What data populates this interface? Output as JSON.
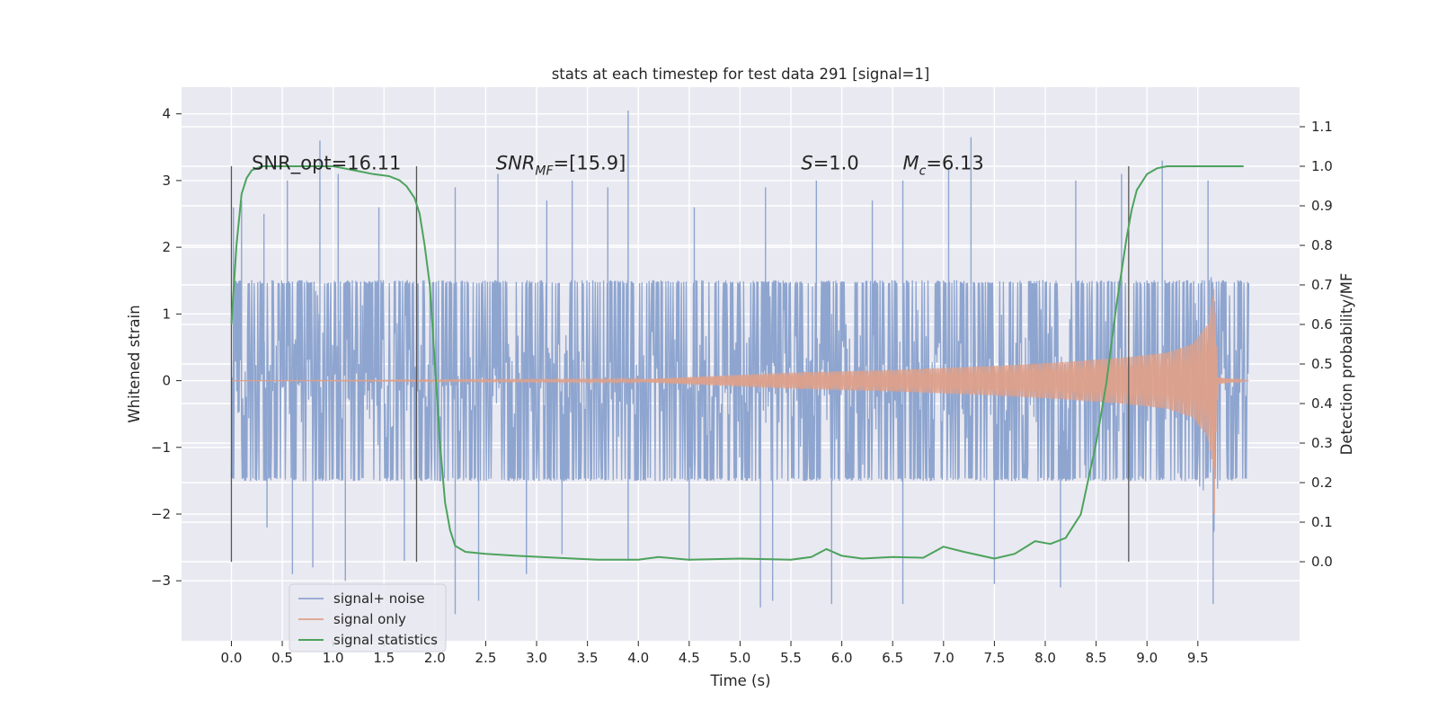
{
  "chart_data": {
    "type": "line",
    "title": "stats at each timestep for test data 291 [signal=1]",
    "xlabel": "Time (s)",
    "ylabel": "Whitened strain",
    "y2label": "Detection probability/MF",
    "xlim": [
      -0.49,
      10.5
    ],
    "ylim": [
      -3.9,
      4.4
    ],
    "y2lim": [
      -0.2,
      1.2
    ],
    "xticks": [
      0.0,
      0.5,
      1.0,
      1.5,
      2.0,
      2.5,
      3.0,
      3.5,
      4.0,
      4.5,
      5.0,
      5.5,
      6.0,
      6.5,
      7.0,
      7.5,
      8.0,
      8.5,
      9.0,
      9.5
    ],
    "xtick_labels": [
      "0.0",
      "0.5",
      "1.0",
      "1.5",
      "2.0",
      "2.5",
      "3.0",
      "3.5",
      "4.0",
      "4.5",
      "5.0",
      "5.5",
      "6.0",
      "6.5",
      "7.0",
      "7.5",
      "8.0",
      "8.5",
      "9.0",
      "9.5"
    ],
    "yticks": [
      -3,
      -2,
      -1,
      0,
      1,
      2,
      3,
      4
    ],
    "ytick_labels": [
      "−3",
      "−2",
      "−1",
      "0",
      "1",
      "2",
      "3",
      "4"
    ],
    "y2ticks": [
      0.0,
      0.1,
      0.2,
      0.3,
      0.4,
      0.5,
      0.6,
      0.7,
      0.8,
      0.9,
      1.0,
      1.1
    ],
    "y2tick_labels": [
      "0.0",
      "0.1",
      "0.2",
      "0.3",
      "0.4",
      "0.5",
      "0.6",
      "0.7",
      "0.8",
      "0.9",
      "1.0",
      "1.1"
    ],
    "grid": true,
    "legend_position": "lower-left",
    "annotations": {
      "snr_opt": "SNR_opt=16.11",
      "snr_mf_main": "SNR",
      "snr_mf_sub": "MF",
      "snr_mf_value": "=[15.9]",
      "s_main": "S",
      "s_value": "=1.0",
      "mc_main": "M",
      "mc_sub": "c",
      "mc_value": "=6.13"
    },
    "vertical_markers_x": [
      0.0,
      1.82,
      8.82
    ],
    "series": [
      {
        "name": "signal+ noise",
        "color": "#8ea5cf",
        "x_range": [
          0.0,
          10.0
        ],
        "typical_envelope": [
          -1.5,
          1.5
        ],
        "peaks": [
          {
            "x": 0.02,
            "y": 2.6
          },
          {
            "x": 0.1,
            "y": 2.7
          },
          {
            "x": 0.32,
            "y": 2.5
          },
          {
            "x": 0.55,
            "y": 3.0
          },
          {
            "x": 0.87,
            "y": 3.6
          },
          {
            "x": 1.05,
            "y": 3.1
          },
          {
            "x": 1.45,
            "y": 2.6
          },
          {
            "x": 2.2,
            "y": 2.9
          },
          {
            "x": 2.62,
            "y": 3.1
          },
          {
            "x": 3.1,
            "y": 2.7
          },
          {
            "x": 3.35,
            "y": 3.0
          },
          {
            "x": 3.7,
            "y": 2.9
          },
          {
            "x": 3.9,
            "y": 4.05
          },
          {
            "x": 4.55,
            "y": 2.6
          },
          {
            "x": 5.25,
            "y": 2.9
          },
          {
            "x": 5.75,
            "y": 3.0
          },
          {
            "x": 6.3,
            "y": 2.7
          },
          {
            "x": 6.6,
            "y": 3.0
          },
          {
            "x": 7.05,
            "y": 3.2
          },
          {
            "x": 7.27,
            "y": 3.65
          },
          {
            "x": 8.3,
            "y": 3.0
          },
          {
            "x": 8.75,
            "y": 3.1
          },
          {
            "x": 9.15,
            "y": 3.3
          },
          {
            "x": 9.6,
            "y": 3.0
          }
        ],
        "troughs": [
          {
            "x": 0.35,
            "y": -2.2
          },
          {
            "x": 0.6,
            "y": -2.9
          },
          {
            "x": 0.8,
            "y": -2.8
          },
          {
            "x": 1.12,
            "y": -3.0
          },
          {
            "x": 1.7,
            "y": -2.7
          },
          {
            "x": 2.2,
            "y": -3.5
          },
          {
            "x": 2.43,
            "y": -3.3
          },
          {
            "x": 2.9,
            "y": -2.9
          },
          {
            "x": 3.25,
            "y": -2.6
          },
          {
            "x": 3.9,
            "y": -2.7
          },
          {
            "x": 4.5,
            "y": -2.7
          },
          {
            "x": 5.2,
            "y": -3.4
          },
          {
            "x": 5.32,
            "y": -3.3
          },
          {
            "x": 5.9,
            "y": -3.35
          },
          {
            "x": 6.6,
            "y": -3.35
          },
          {
            "x": 7.5,
            "y": -3.05
          },
          {
            "x": 8.15,
            "y": -3.1
          },
          {
            "x": 9.65,
            "y": -3.35
          }
        ]
      },
      {
        "name": "signal only",
        "color": "#dea08a",
        "x_range": [
          0.0,
          10.0
        ],
        "amplitude_envelope": {
          "x": [
            0.0,
            4.0,
            5.5,
            6.5,
            7.5,
            8.2,
            8.8,
            9.2,
            9.45,
            9.6,
            9.66,
            9.7,
            10.0
          ],
          "y": [
            0.0,
            0.02,
            0.12,
            0.16,
            0.22,
            0.28,
            0.35,
            0.42,
            0.55,
            0.85,
            1.4,
            0.05,
            0.0
          ]
        }
      },
      {
        "name": "signal statistics",
        "color": "#4ca35c",
        "axis": "right",
        "x": [
          0.0,
          0.05,
          0.1,
          0.15,
          0.2,
          0.3,
          0.4,
          0.6,
          0.8,
          1.0,
          1.2,
          1.4,
          1.55,
          1.65,
          1.72,
          1.8,
          1.85,
          1.9,
          1.95,
          2.0,
          2.05,
          2.1,
          2.15,
          2.2,
          2.3,
          2.5,
          2.8,
          3.2,
          3.6,
          4.0,
          4.2,
          4.5,
          5.0,
          5.5,
          5.7,
          5.85,
          6.0,
          6.2,
          6.5,
          6.8,
          7.0,
          7.2,
          7.5,
          7.7,
          7.9,
          8.05,
          8.2,
          8.35,
          8.5,
          8.6,
          8.7,
          8.8,
          8.85,
          8.9,
          9.0,
          9.1,
          9.2,
          9.4,
          9.6,
          9.8,
          9.95
        ],
        "y": [
          0.6,
          0.8,
          0.93,
          0.97,
          0.99,
          1.0,
          1.0,
          1.0,
          1.0,
          1.0,
          0.99,
          0.98,
          0.975,
          0.965,
          0.95,
          0.92,
          0.88,
          0.8,
          0.7,
          0.5,
          0.3,
          0.15,
          0.08,
          0.04,
          0.025,
          0.02,
          0.015,
          0.01,
          0.005,
          0.005,
          0.012,
          0.005,
          0.008,
          0.005,
          0.012,
          0.032,
          0.015,
          0.008,
          0.012,
          0.01,
          0.038,
          0.025,
          0.008,
          0.02,
          0.052,
          0.045,
          0.06,
          0.12,
          0.3,
          0.45,
          0.65,
          0.82,
          0.89,
          0.94,
          0.98,
          0.995,
          1.0,
          1.0,
          1.0,
          1.0,
          1.0
        ]
      }
    ]
  }
}
